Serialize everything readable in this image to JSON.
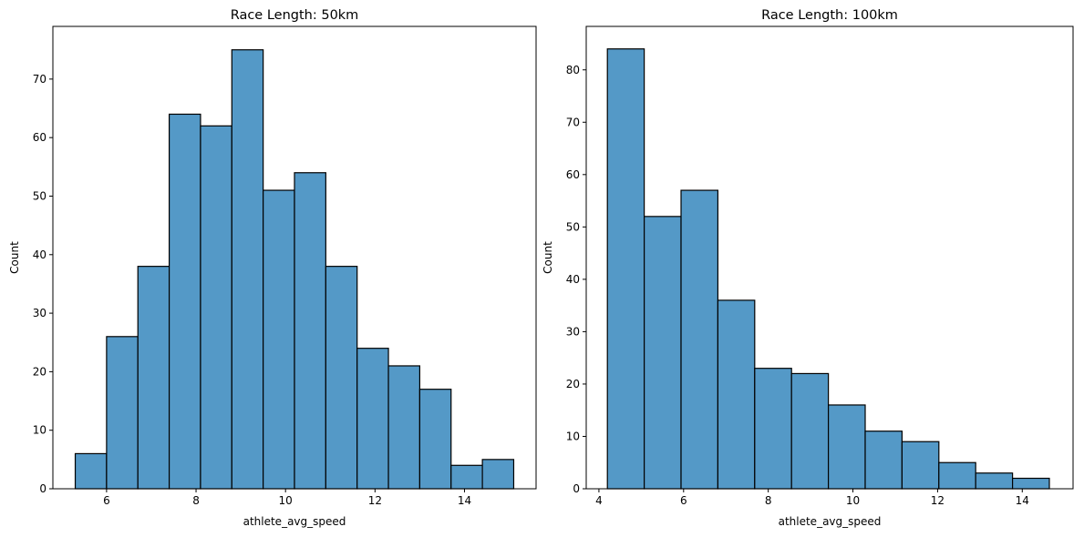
{
  "chart_data": [
    {
      "type": "bar",
      "title": "Race Length: 50km",
      "xlabel": "athlete_avg_speed",
      "ylabel": "Count",
      "xlim": [
        4.8,
        15.6
      ],
      "ylim": [
        0,
        79
      ],
      "xticks": [
        6,
        8,
        10,
        12,
        14
      ],
      "yticks": [
        0,
        10,
        20,
        30,
        40,
        50,
        60,
        70
      ],
      "bar_color": "#5499c7",
      "edge_color": "#000000",
      "bins": [
        {
          "x0": 5.3,
          "x1": 6.0,
          "count": 6
        },
        {
          "x0": 6.0,
          "x1": 6.7,
          "count": 26
        },
        {
          "x0": 6.7,
          "x1": 7.4,
          "count": 38
        },
        {
          "x0": 7.4,
          "x1": 8.1,
          "count": 64
        },
        {
          "x0": 8.1,
          "x1": 8.8,
          "count": 62
        },
        {
          "x0": 8.8,
          "x1": 9.5,
          "count": 75
        },
        {
          "x0": 9.5,
          "x1": 10.2,
          "count": 51
        },
        {
          "x0": 10.2,
          "x1": 10.9,
          "count": 54
        },
        {
          "x0": 10.9,
          "x1": 11.6,
          "count": 38
        },
        {
          "x0": 11.6,
          "x1": 12.3,
          "count": 24
        },
        {
          "x0": 12.3,
          "x1": 13.0,
          "count": 21
        },
        {
          "x0": 13.0,
          "x1": 13.7,
          "count": 17
        },
        {
          "x0": 13.7,
          "x1": 14.4,
          "count": 4
        },
        {
          "x0": 14.4,
          "x1": 15.1,
          "count": 5
        }
      ]
    },
    {
      "type": "bar",
      "title": "Race Length: 100km",
      "xlabel": "athlete_avg_speed",
      "ylabel": "Count",
      "xlim": [
        3.7,
        15.2
      ],
      "ylim": [
        0,
        88.3
      ],
      "xticks": [
        4,
        6,
        8,
        10,
        12,
        14
      ],
      "yticks": [
        0,
        10,
        20,
        30,
        40,
        50,
        60,
        70,
        80
      ],
      "bar_color": "#5499c7",
      "edge_color": "#000000",
      "bins": [
        {
          "x0": 4.2,
          "x1": 5.07,
          "count": 84
        },
        {
          "x0": 5.07,
          "x1": 5.94,
          "count": 52
        },
        {
          "x0": 5.94,
          "x1": 6.81,
          "count": 57
        },
        {
          "x0": 6.81,
          "x1": 7.68,
          "count": 36
        },
        {
          "x0": 7.68,
          "x1": 8.55,
          "count": 23
        },
        {
          "x0": 8.55,
          "x1": 9.42,
          "count": 22
        },
        {
          "x0": 9.42,
          "x1": 10.29,
          "count": 16
        },
        {
          "x0": 10.29,
          "x1": 11.16,
          "count": 11
        },
        {
          "x0": 11.16,
          "x1": 12.03,
          "count": 9
        },
        {
          "x0": 12.03,
          "x1": 12.9,
          "count": 5
        },
        {
          "x0": 12.9,
          "x1": 13.77,
          "count": 3
        },
        {
          "x0": 13.77,
          "x1": 14.64,
          "count": 2
        }
      ]
    }
  ]
}
